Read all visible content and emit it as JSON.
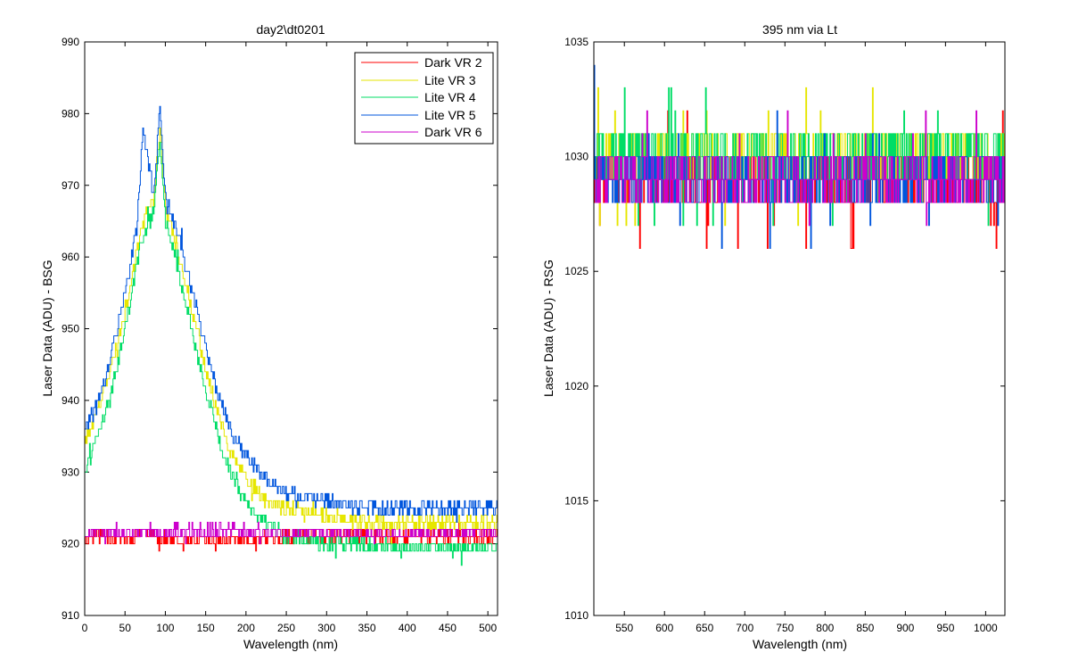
{
  "chart_data": [
    {
      "type": "line",
      "title": "day2\\dt0201",
      "xlabel": "Wavelength (nm)",
      "ylabel": "Laser Data (ADU) - BSG",
      "xlim": [
        0,
        512
      ],
      "ylim": [
        910,
        990
      ],
      "xticks": [
        0,
        50,
        100,
        150,
        200,
        250,
        300,
        350,
        400,
        450,
        500
      ],
      "yticks": [
        910,
        920,
        930,
        940,
        950,
        960,
        970,
        980,
        990
      ],
      "legend_position": "top-right",
      "series": [
        {
          "name": "Dark VR 2",
          "color": "#ff0000",
          "x": [
            0,
            20,
            40,
            60,
            70,
            80,
            90,
            100,
            120,
            150,
            200,
            300,
            400,
            512
          ],
          "y": [
            921,
            921,
            921,
            921,
            922,
            921.5,
            921,
            920.5,
            920,
            920.5,
            920.5,
            921,
            921,
            921
          ]
        },
        {
          "name": "Lite VR 3",
          "color": "#e6e600",
          "x": [
            0,
            10,
            25,
            40,
            55,
            65,
            75,
            85,
            93,
            100,
            110,
            120,
            140,
            160,
            180,
            200,
            225,
            250,
            300,
            350,
            400,
            450,
            512
          ],
          "y": [
            934,
            937,
            942,
            948,
            955,
            961,
            966,
            968,
            978,
            967,
            963,
            959,
            949,
            940,
            933,
            929,
            926,
            925,
            924,
            923,
            923,
            923,
            923
          ]
        },
        {
          "name": "Lite VR 4",
          "color": "#00dd66",
          "x": [
            0,
            10,
            25,
            40,
            55,
            65,
            75,
            85,
            93,
            100,
            110,
            120,
            140,
            160,
            180,
            200,
            225,
            250,
            300,
            350,
            400,
            450,
            512
          ],
          "y": [
            930,
            933,
            938,
            945,
            953,
            960,
            964,
            966,
            977,
            965,
            961,
            956,
            946,
            937,
            930,
            926,
            923,
            921,
            920,
            920,
            919.5,
            919.5,
            919.5
          ]
        },
        {
          "name": "Lite VR 5",
          "color": "#0055dd",
          "x": [
            0,
            10,
            25,
            40,
            55,
            65,
            72,
            85,
            93,
            100,
            110,
            120,
            140,
            160,
            180,
            200,
            225,
            250,
            300,
            350,
            400,
            450,
            512
          ],
          "y": [
            936,
            938,
            943,
            950,
            958,
            965,
            978,
            968,
            981,
            968,
            965,
            961,
            952,
            943,
            936,
            932,
            929,
            927,
            926,
            925,
            925,
            925,
            925
          ]
        },
        {
          "name": "Dark VR 6",
          "color": "#cc00cc",
          "x": [
            0,
            50,
            100,
            150,
            200,
            250,
            300,
            400,
            512
          ],
          "y": [
            921.5,
            921.5,
            921.5,
            922,
            921.5,
            921.5,
            921.5,
            921.5,
            921.5
          ]
        }
      ]
    },
    {
      "type": "line",
      "title": "395 nm via Lt",
      "xlabel": "Wavelength (nm)",
      "ylabel": "Laser Data (ADU) - RSG",
      "xlim": [
        512,
        1024
      ],
      "ylim": [
        1010,
        1035
      ],
      "xticks": [
        550,
        600,
        650,
        700,
        750,
        800,
        850,
        900,
        950,
        1000
      ],
      "yticks": [
        1010,
        1015,
        1020,
        1025,
        1030,
        1035
      ],
      "series": [
        {
          "name": "Dark VR 2",
          "color": "#ff0000",
          "x": [
            512,
            1024
          ],
          "y": [
            1029,
            1029
          ]
        },
        {
          "name": "Lite VR 3",
          "color": "#e6e600",
          "x": [
            512,
            1024
          ],
          "y": [
            1029.6,
            1029.6
          ]
        },
        {
          "name": "Lite VR 4",
          "color": "#00dd66",
          "x": [
            512,
            1024
          ],
          "y": [
            1029.9,
            1029.9
          ]
        },
        {
          "name": "Lite VR 5",
          "color": "#0055dd",
          "x": [
            512,
            1024
          ],
          "y": [
            1029.1,
            1029.1
          ]
        },
        {
          "name": "Dark VR 6",
          "color": "#cc00cc",
          "x": [
            512,
            1024
          ],
          "y": [
            1029.4,
            1029.4
          ]
        }
      ]
    }
  ]
}
